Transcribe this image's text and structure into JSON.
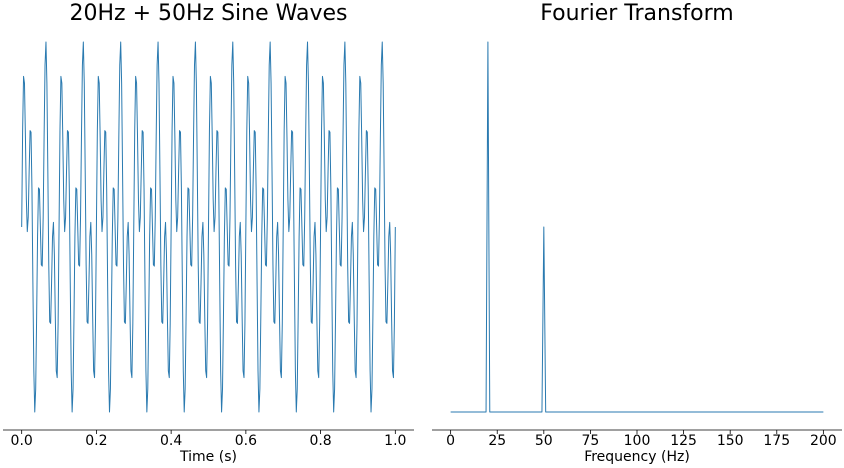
{
  "chart_data": [
    {
      "type": "line",
      "title": "20Hz + 50Hz Sine Waves",
      "xlabel": "Time (s)",
      "x": [
        0,
        0.0025,
        0.005,
        0.0075,
        0.01,
        0.0125,
        0.015,
        0.0175,
        0.02,
        0.0225,
        0.025,
        0.0275,
        0.03,
        0.0325,
        0.035,
        0.0375,
        0.04,
        0.0425,
        0.045,
        0.0475,
        0.05,
        0.0525,
        0.055,
        0.0575,
        0.06,
        0.0625,
        0.065,
        0.0675,
        0.07,
        0.0725,
        0.075,
        0.0775,
        0.08,
        0.0825,
        0.085,
        0.0875,
        0.09,
        0.0925,
        0.095,
        0.0975,
        0.1,
        0.1025,
        0.105,
        0.1075,
        0.11,
        0.1125,
        0.115,
        0.1175,
        0.12,
        0.1225,
        0.125,
        0.1275,
        0.13,
        0.1325,
        0.135,
        0.1375,
        0.14,
        0.1425,
        0.145,
        0.1475,
        0.15,
        0.1525,
        0.155,
        0.1575,
        0.16,
        0.1625,
        0.165,
        0.1675,
        0.17,
        0.1725,
        0.175,
        0.1775,
        0.18,
        0.1825,
        0.185,
        0.1875,
        0.19,
        0.1925,
        0.195,
        0.1975,
        0.2,
        0.2025,
        0.205,
        0.2075,
        0.21,
        0.2125,
        0.215,
        0.2175,
        0.22,
        0.2225,
        0.225,
        0.2275,
        0.23,
        0.2325,
        0.235,
        0.2375,
        0.24,
        0.2425,
        0.245,
        0.2475,
        0.25,
        0.2525,
        0.255,
        0.2575,
        0.26,
        0.2625,
        0.265,
        0.2675,
        0.27,
        0.2725,
        0.275,
        0.2775,
        0.28,
        0.2825,
        0.285,
        0.2875,
        0.29,
        0.2925,
        0.295,
        0.2975,
        0.3,
        0.3025,
        0.305,
        0.3075,
        0.31,
        0.3125,
        0.315,
        0.3175,
        0.32,
        0.3225,
        0.325,
        0.3275,
        0.33,
        0.3325,
        0.335,
        0.3375,
        0.34,
        0.3425,
        0.345,
        0.3475,
        0.35,
        0.3525,
        0.355,
        0.3575,
        0.36,
        0.3625,
        0.365,
        0.3675,
        0.37,
        0.3725,
        0.375,
        0.3775,
        0.38,
        0.3825,
        0.385,
        0.3875,
        0.39,
        0.3925,
        0.395,
        0.3975,
        0.4,
        0.4025,
        0.405,
        0.4075,
        0.41,
        0.4125,
        0.415,
        0.4175,
        0.42,
        0.4225,
        0.425,
        0.4275,
        0.43,
        0.4325,
        0.435,
        0.4375,
        0.44,
        0.4425,
        0.445,
        0.4475,
        0.45,
        0.4525,
        0.455,
        0.4575,
        0.46,
        0.4625,
        0.465,
        0.4675,
        0.47,
        0.4725,
        0.475,
        0.4775,
        0.48,
        0.4825,
        0.485,
        0.4875,
        0.49,
        0.4925,
        0.495,
        0.4975,
        0.5,
        0.5025,
        0.505,
        0.5075,
        0.51,
        0.5125,
        0.515,
        0.5175,
        0.52,
        0.5225,
        0.525,
        0.5275,
        0.53,
        0.5325,
        0.535,
        0.5375,
        0.54,
        0.5425,
        0.545,
        0.5475,
        0.55,
        0.5525,
        0.555,
        0.5575,
        0.56,
        0.5625,
        0.565,
        0.5675,
        0.57,
        0.5725,
        0.575,
        0.5775,
        0.58,
        0.5825,
        0.585,
        0.5875,
        0.59,
        0.5925,
        0.595,
        0.5975,
        0.6,
        0.6025,
        0.605,
        0.6075,
        0.61,
        0.6125,
        0.615,
        0.6175,
        0.62,
        0.6225,
        0.625,
        0.6275,
        0.63,
        0.6325,
        0.635,
        0.6375,
        0.64,
        0.6425,
        0.645,
        0.6475,
        0.65,
        0.6525,
        0.655,
        0.6575,
        0.66,
        0.6625,
        0.665,
        0.6675,
        0.67,
        0.6725,
        0.675,
        0.6775,
        0.68,
        0.6825,
        0.685,
        0.6875,
        0.69,
        0.6925,
        0.695,
        0.6975,
        0.7,
        0.7025,
        0.705,
        0.7075,
        0.71,
        0.7125,
        0.715,
        0.7175,
        0.72,
        0.7225,
        0.725,
        0.7275,
        0.73,
        0.7325,
        0.735,
        0.7375,
        0.74,
        0.7425,
        0.745,
        0.7475,
        0.75,
        0.7525,
        0.755,
        0.7575,
        0.76,
        0.7625,
        0.765,
        0.7675,
        0.77,
        0.7725,
        0.775,
        0.7775,
        0.78,
        0.7825,
        0.785,
        0.7875,
        0.79,
        0.7925,
        0.795,
        0.7975,
        0.8,
        0.8025,
        0.805,
        0.8075,
        0.81,
        0.8125,
        0.815,
        0.8175,
        0.82,
        0.8225,
        0.825,
        0.8275,
        0.83,
        0.8325,
        0.835,
        0.8375,
        0.84,
        0.8425,
        0.845,
        0.8475,
        0.85,
        0.8525,
        0.855,
        0.8575,
        0.86,
        0.8625,
        0.865,
        0.8675,
        0.87,
        0.8725,
        0.875,
        0.8775,
        0.88,
        0.8825,
        0.885,
        0.8875,
        0.89,
        0.8925,
        0.895,
        0.8975,
        0.9,
        0.9025,
        0.905,
        0.9075,
        0.91,
        0.9125,
        0.915,
        0.9175,
        0.92,
        0.9225,
        0.925,
        0.9275,
        0.93,
        0.9325,
        0.935,
        0.9375,
        0.94,
        0.9425,
        0.945,
        0.9475,
        0.95,
        0.9525,
        0.955,
        0.9575,
        0.96,
        0.9625,
        0.965,
        0.9675,
        0.97,
        0.9725,
        0.975,
        0.9775,
        0.98,
        0.9825,
        0.985,
        0.9875,
        0.99,
        0.9925,
        0.995,
        0.9975,
        1
      ],
      "series": [
        {
          "color": "#2a7ab0",
          "values": [
            0,
            1.016,
            1.588,
            1.516,
            0.951,
            0.293,
            -0.049,
            0.102,
            0.588,
            1.016,
            1,
            0.398,
            -0.588,
            -1.516,
            -1.951,
            -1.707,
            -0.951,
            -0.102,
            0.412,
            0.398,
            0,
            -0.398,
            -0.412,
            0.102,
            0.951,
            1.707,
            1.951,
            1.516,
            0.588,
            -0.398,
            -1,
            -1.016,
            -0.588,
            -0.102,
            0.049,
            -0.293,
            -0.951,
            -1.516,
            -1.588,
            -1.016,
            0,
            1.016,
            1.588,
            1.516,
            0.951,
            0.293,
            -0.049,
            0.102,
            0.588,
            1.016,
            1,
            0.398,
            -0.588,
            -1.516,
            -1.951,
            -1.707,
            -0.951,
            -0.102,
            0.412,
            0.398,
            0,
            -0.398,
            -0.412,
            0.102,
            0.951,
            1.707,
            1.951,
            1.516,
            0.588,
            -0.398,
            -1,
            -1.016,
            -0.588,
            -0.102,
            0.049,
            -0.293,
            -0.951,
            -1.516,
            -1.588,
            -1.016,
            0,
            1.016,
            1.588,
            1.516,
            0.951,
            0.293,
            -0.049,
            0.102,
            0.588,
            1.016,
            1,
            0.398,
            -0.588,
            -1.516,
            -1.951,
            -1.707,
            -0.951,
            -0.102,
            0.412,
            0.398,
            0,
            -0.398,
            -0.412,
            0.102,
            0.951,
            1.707,
            1.951,
            1.516,
            0.588,
            -0.398,
            -1,
            -1.016,
            -0.588,
            -0.102,
            0.049,
            -0.293,
            -0.951,
            -1.516,
            -1.588,
            -1.016,
            0,
            1.016,
            1.588,
            1.516,
            0.951,
            0.293,
            -0.049,
            0.102,
            0.588,
            1.016,
            1,
            0.398,
            -0.588,
            -1.516,
            -1.951,
            -1.707,
            -0.951,
            -0.102,
            0.412,
            0.398,
            0,
            -0.398,
            -0.412,
            0.102,
            0.951,
            1.707,
            1.951,
            1.516,
            0.588,
            -0.398,
            -1,
            -1.016,
            -0.588,
            -0.102,
            0.049,
            -0.293,
            -0.951,
            -1.516,
            -1.588,
            -1.016,
            0,
            1.016,
            1.588,
            1.516,
            0.951,
            0.293,
            -0.049,
            0.102,
            0.588,
            1.016,
            1,
            0.398,
            -0.588,
            -1.516,
            -1.951,
            -1.707,
            -0.951,
            -0.102,
            0.412,
            0.398,
            0,
            -0.398,
            -0.412,
            0.102,
            0.951,
            1.707,
            1.951,
            1.516,
            0.588,
            -0.398,
            -1,
            -1.016,
            -0.588,
            -0.102,
            0.049,
            -0.293,
            -0.951,
            -1.516,
            -1.588,
            -1.016,
            0,
            1.016,
            1.588,
            1.516,
            0.951,
            0.293,
            -0.049,
            0.102,
            0.588,
            1.016,
            1,
            0.398,
            -0.588,
            -1.516,
            -1.951,
            -1.707,
            -0.951,
            -0.102,
            0.412,
            0.398,
            0,
            -0.398,
            -0.412,
            0.102,
            0.951,
            1.707,
            1.951,
            1.516,
            0.588,
            -0.398,
            -1,
            -1.016,
            -0.588,
            -0.102,
            0.049,
            -0.293,
            -0.951,
            -1.516,
            -1.588,
            -1.016,
            0,
            1.016,
            1.588,
            1.516,
            0.951,
            0.293,
            -0.049,
            0.102,
            0.588,
            1.016,
            1,
            0.398,
            -0.588,
            -1.516,
            -1.951,
            -1.707,
            -0.951,
            -0.102,
            0.412,
            0.398,
            0,
            -0.398,
            -0.412,
            0.102,
            0.951,
            1.707,
            1.951,
            1.516,
            0.588,
            -0.398,
            -1,
            -1.016,
            -0.588,
            -0.102,
            0.049,
            -0.293,
            -0.951,
            -1.516,
            -1.588,
            -1.016,
            0,
            1.016,
            1.588,
            1.516,
            0.951,
            0.293,
            -0.049,
            0.102,
            0.588,
            1.016,
            1,
            0.398,
            -0.588,
            -1.516,
            -1.951,
            -1.707,
            -0.951,
            -0.102,
            0.412,
            0.398,
            0,
            -0.398,
            -0.412,
            0.102,
            0.951,
            1.707,
            1.951,
            1.516,
            0.588,
            -0.398,
            -1,
            -1.016,
            -0.588,
            -0.102,
            0.049,
            -0.293,
            -0.951,
            -1.516,
            -1.588,
            -1.016,
            0,
            1.016,
            1.588,
            1.516,
            0.951,
            0.293,
            -0.049,
            0.102,
            0.588,
            1.016,
            1,
            0.398,
            -0.588,
            -1.516,
            -1.951,
            -1.707,
            -0.951,
            -0.102,
            0.412,
            0.398,
            0,
            -0.398,
            -0.412,
            0.102,
            0.951,
            1.707,
            1.951,
            1.516,
            0.588,
            -0.398,
            -1,
            -1.016,
            -0.588,
            -0.102,
            0.049,
            -0.293,
            -0.951,
            -1.516,
            -1.588,
            -1.016,
            0,
            1.016,
            1.588,
            1.516,
            0.951,
            0.293,
            -0.049,
            0.102,
            0.588,
            1.016,
            1,
            0.398,
            -0.588,
            -1.516,
            -1.951,
            -1.707,
            -0.951,
            -0.102,
            0.412,
            0.398,
            0,
            -0.398,
            -0.412,
            0.102,
            0.951,
            1.707,
            1.951,
            1.516,
            0.588,
            -0.398,
            -1,
            -1.016,
            -0.588,
            -0.102,
            0.049,
            -0.293,
            -0.951,
            -1.516,
            -1.588,
            -1.016,
            0
          ]
        }
      ],
      "xlim": [
        -0.05,
        1.05
      ],
      "ylim": [
        -2.05,
        2.05
      ],
      "xticks": [
        {
          "value": 0,
          "label": "0.0"
        },
        {
          "value": 0.2,
          "label": "0.2"
        },
        {
          "value": 0.4,
          "label": "0.4"
        },
        {
          "value": 0.6,
          "label": "0.6"
        },
        {
          "value": 0.8,
          "label": "0.8"
        },
        {
          "value": 1,
          "label": "1.0"
        }
      ]
    },
    {
      "type": "line",
      "title": "Fourier Transform",
      "xlabel": "Frequency (Hz)",
      "x": [
        0,
        19,
        20,
        21,
        49,
        50,
        51,
        200
      ],
      "series": [
        {
          "color": "#2a7ab0",
          "values": [
            0,
            0,
            500,
            0,
            0,
            250,
            0,
            0
          ]
        }
      ],
      "xlim": [
        -10,
        210
      ],
      "ylim": [
        -12.7,
        512.7
      ],
      "xticks": [
        0,
        25,
        50,
        75,
        100,
        125,
        150,
        175,
        200
      ]
    }
  ]
}
